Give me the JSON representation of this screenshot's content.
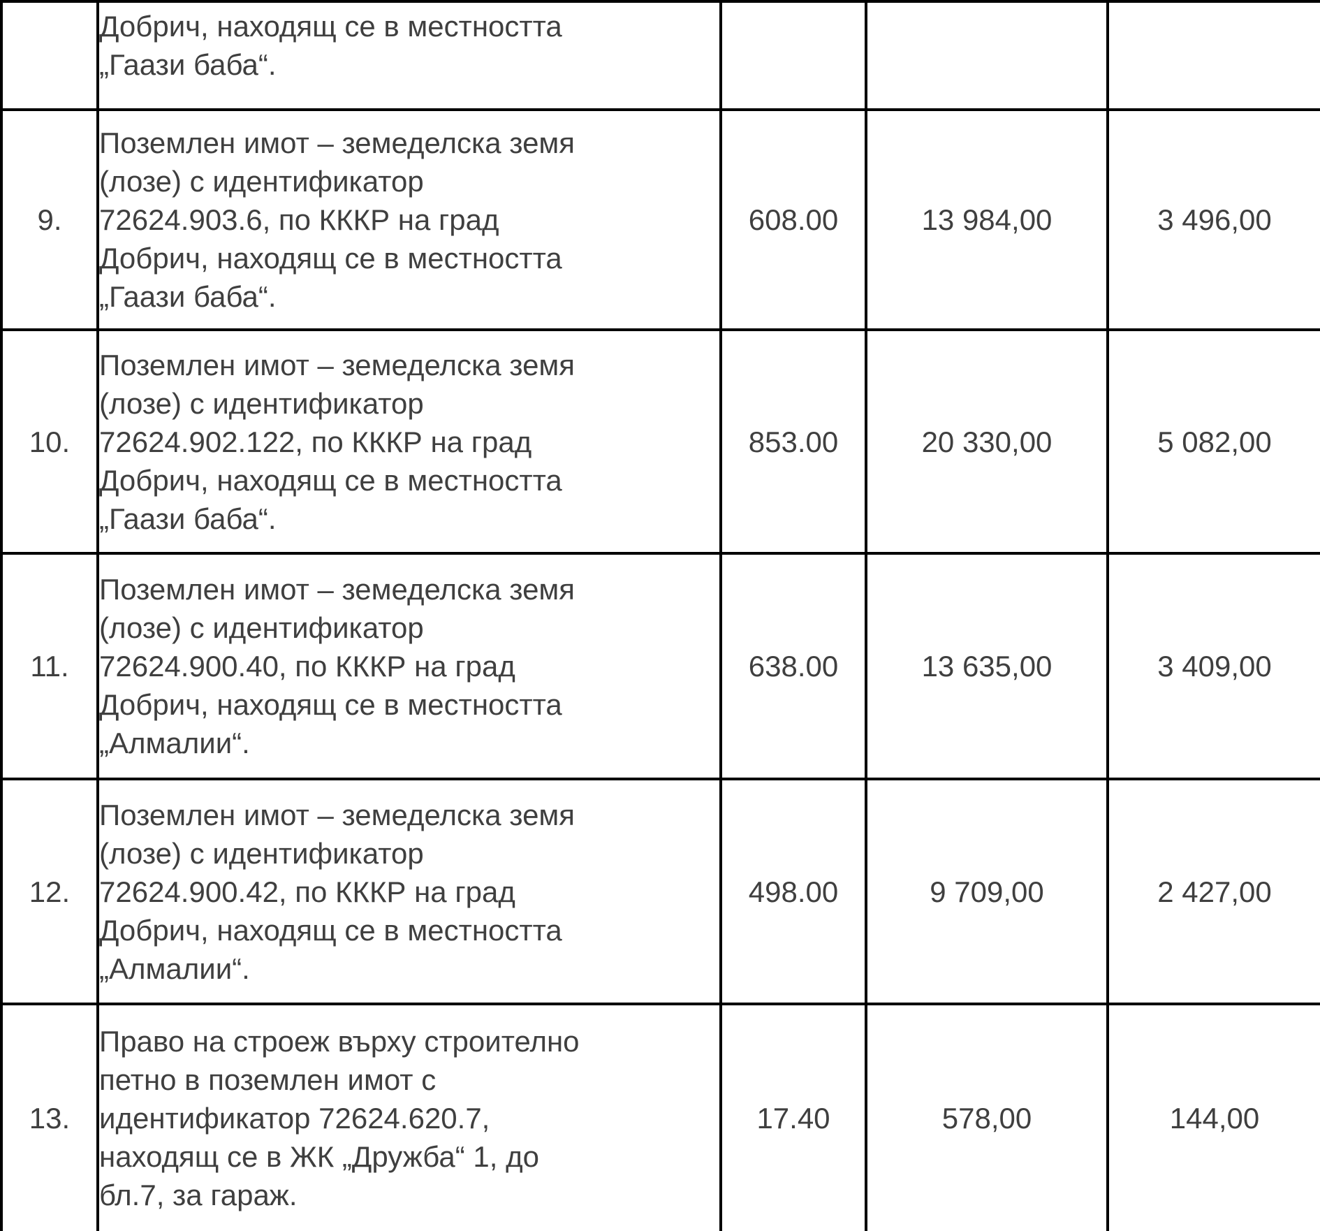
{
  "table": {
    "rows": [
      {
        "num": "",
        "desc": "Добрич, находящ се в местността\n„Гаази баба“.",
        "area": "",
        "value1": "",
        "value2": ""
      },
      {
        "num": "9.",
        "desc": "Поземлен имот – земеделска земя\n(лозе) с идентификатор\n72624.903.6, по КККР на град\nДобрич, находящ се в местността\n„Гаази баба“.",
        "area": "608.00",
        "value1": "13 984,00",
        "value2": "3 496,00"
      },
      {
        "num": "10.",
        "desc": "Поземлен имот – земеделска земя\n(лозе) с идентификатор\n72624.902.122, по КККР на град\nДобрич, находящ се в местността\n„Гаази баба“.",
        "area": "853.00",
        "value1": "20 330,00",
        "value2": "5 082,00"
      },
      {
        "num": "11.",
        "desc": "Поземлен имот – земеделска земя\n(лозе) с идентификатор\n72624.900.40, по КККР на град\nДобрич, находящ се в местността\n„Алмалии“.",
        "area": "638.00",
        "value1": "13 635,00",
        "value2": "3 409,00"
      },
      {
        "num": "12.",
        "desc": "Поземлен имот – земеделска земя\n(лозе) с идентификатор\n72624.900.42, по КККР на град\nДобрич, находящ се в местността\n„Алмалии“.",
        "area": "498.00",
        "value1": "9 709,00",
        "value2": "2 427,00"
      },
      {
        "num": "13.",
        "desc": "Право на строеж върху строително\nпетно в поземлен имот с\nидентификатор 72624.620.7,\nнаходящ се в ЖК „Дружба“ 1, до\nбл.7, за гараж.",
        "area": "17.40",
        "value1": "578,00",
        "value2": "144,00"
      }
    ]
  }
}
